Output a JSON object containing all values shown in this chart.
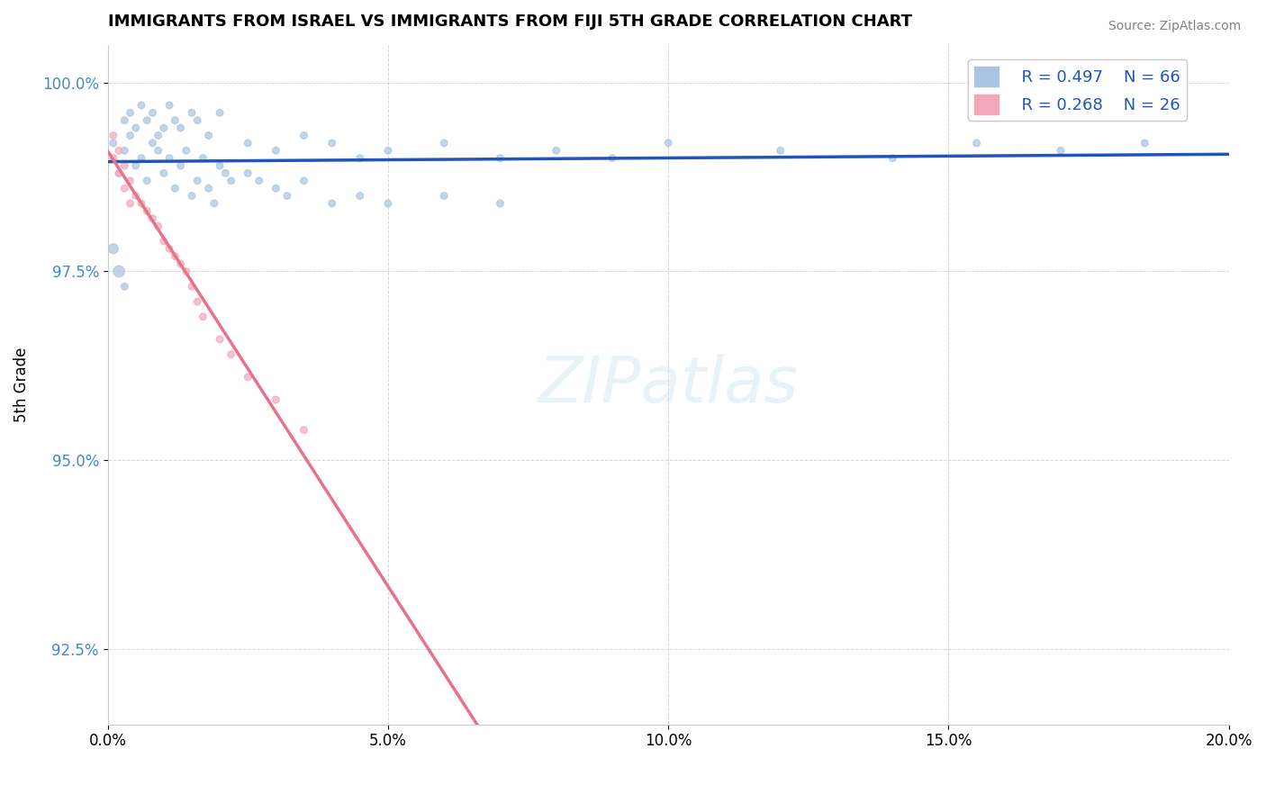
{
  "title": "IMMIGRANTS FROM ISRAEL VS IMMIGRANTS FROM FIJI 5TH GRADE CORRELATION CHART",
  "source": "Source: ZipAtlas.com",
  "xlabel": "",
  "ylabel": "5th Grade",
  "xlim": [
    0.0,
    0.2
  ],
  "ylim": [
    0.915,
    1.005
  ],
  "yticks": [
    0.925,
    0.95,
    0.975,
    1.0
  ],
  "ytick_labels": [
    "92.5%",
    "95.0%",
    "97.5%",
    "100.0%"
  ],
  "xticks": [
    0.0,
    0.05,
    0.1,
    0.15,
    0.2
  ],
  "xtick_labels": [
    "0.0%",
    "5.0%",
    "10.0%",
    "15.0%",
    "20.0%"
  ],
  "legend_R_israel": "R = 0.497",
  "legend_N_israel": "N = 66",
  "legend_R_fiji": "R = 0.268",
  "legend_N_fiji": "N = 26",
  "israel_color": "#a8c4e0",
  "fiji_color": "#f4a7b9",
  "israel_line_color": "#2255bb",
  "fiji_line_color": "#e8728a",
  "watermark": "ZIPatlas",
  "watermark_color": "#d0e8f0",
  "israel_points": [
    [
      0.001,
      0.992
    ],
    [
      0.002,
      0.988
    ],
    [
      0.003,
      0.991
    ],
    [
      0.004,
      0.993
    ],
    [
      0.005,
      0.989
    ],
    [
      0.006,
      0.99
    ],
    [
      0.007,
      0.987
    ],
    [
      0.008,
      0.992
    ],
    [
      0.009,
      0.991
    ],
    [
      0.01,
      0.988
    ],
    [
      0.011,
      0.99
    ],
    [
      0.012,
      0.986
    ],
    [
      0.013,
      0.989
    ],
    [
      0.014,
      0.991
    ],
    [
      0.015,
      0.985
    ],
    [
      0.016,
      0.987
    ],
    [
      0.017,
      0.99
    ],
    [
      0.018,
      0.986
    ],
    [
      0.019,
      0.984
    ],
    [
      0.02,
      0.989
    ],
    [
      0.021,
      0.988
    ],
    [
      0.022,
      0.987
    ],
    [
      0.025,
      0.988
    ],
    [
      0.027,
      0.987
    ],
    [
      0.03,
      0.986
    ],
    [
      0.032,
      0.985
    ],
    [
      0.035,
      0.987
    ],
    [
      0.04,
      0.984
    ],
    [
      0.045,
      0.985
    ],
    [
      0.05,
      0.984
    ],
    [
      0.06,
      0.985
    ],
    [
      0.07,
      0.984
    ],
    [
      0.003,
      0.995
    ],
    [
      0.004,
      0.996
    ],
    [
      0.005,
      0.994
    ],
    [
      0.006,
      0.997
    ],
    [
      0.007,
      0.995
    ],
    [
      0.008,
      0.996
    ],
    [
      0.009,
      0.993
    ],
    [
      0.01,
      0.994
    ],
    [
      0.011,
      0.997
    ],
    [
      0.012,
      0.995
    ],
    [
      0.013,
      0.994
    ],
    [
      0.015,
      0.996
    ],
    [
      0.016,
      0.995
    ],
    [
      0.018,
      0.993
    ],
    [
      0.02,
      0.996
    ],
    [
      0.025,
      0.992
    ],
    [
      0.03,
      0.991
    ],
    [
      0.035,
      0.993
    ],
    [
      0.04,
      0.992
    ],
    [
      0.045,
      0.99
    ],
    [
      0.05,
      0.991
    ],
    [
      0.06,
      0.992
    ],
    [
      0.07,
      0.99
    ],
    [
      0.08,
      0.991
    ],
    [
      0.09,
      0.99
    ],
    [
      0.1,
      0.992
    ],
    [
      0.12,
      0.991
    ],
    [
      0.14,
      0.99
    ],
    [
      0.155,
      0.992
    ],
    [
      0.17,
      0.991
    ],
    [
      0.185,
      0.992
    ],
    [
      0.001,
      0.978
    ],
    [
      0.002,
      0.975
    ],
    [
      0.003,
      0.973
    ]
  ],
  "fiji_points": [
    [
      0.001,
      0.99
    ],
    [
      0.002,
      0.988
    ],
    [
      0.003,
      0.986
    ],
    [
      0.004,
      0.984
    ],
    [
      0.005,
      0.985
    ],
    [
      0.006,
      0.984
    ],
    [
      0.007,
      0.983
    ],
    [
      0.008,
      0.982
    ],
    [
      0.009,
      0.981
    ],
    [
      0.01,
      0.979
    ],
    [
      0.011,
      0.978
    ],
    [
      0.012,
      0.977
    ],
    [
      0.013,
      0.976
    ],
    [
      0.014,
      0.975
    ],
    [
      0.015,
      0.973
    ],
    [
      0.016,
      0.971
    ],
    [
      0.017,
      0.969
    ],
    [
      0.02,
      0.966
    ],
    [
      0.022,
      0.964
    ],
    [
      0.025,
      0.961
    ],
    [
      0.03,
      0.958
    ],
    [
      0.035,
      0.954
    ],
    [
      0.001,
      0.993
    ],
    [
      0.002,
      0.991
    ],
    [
      0.003,
      0.989
    ],
    [
      0.004,
      0.987
    ]
  ],
  "israel_sizes": [
    30,
    30,
    30,
    30,
    30,
    30,
    30,
    30,
    30,
    30,
    30,
    30,
    30,
    30,
    30,
    30,
    30,
    30,
    30,
    30,
    30,
    30,
    30,
    30,
    30,
    30,
    30,
    30,
    30,
    30,
    30,
    30,
    30,
    30,
    30,
    30,
    30,
    30,
    30,
    30,
    30,
    30,
    30,
    30,
    30,
    30,
    30,
    30,
    30,
    30,
    30,
    30,
    30,
    30,
    30,
    30,
    30,
    30,
    30,
    30,
    30,
    30,
    30,
    60,
    80,
    30
  ],
  "fiji_sizes": [
    30,
    30,
    30,
    30,
    30,
    30,
    30,
    30,
    30,
    30,
    30,
    30,
    30,
    30,
    30,
    30,
    30,
    30,
    30,
    30,
    30,
    30,
    30,
    30,
    30,
    30
  ]
}
